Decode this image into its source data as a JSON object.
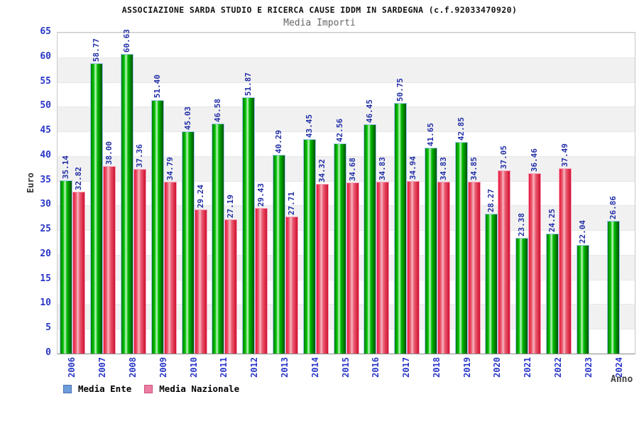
{
  "title": "ASSOCIAZIONE SARDA STUDIO E RICERCA CAUSE IDDM IN SARDEGNA (c.f.92033470920)",
  "subtitle": "Media Importi",
  "chart_data": {
    "type": "bar",
    "title": "ASSOCIAZIONE SARDA STUDIO E RICERCA CAUSE IDDM IN SARDEGNA (c.f.92033470920)",
    "subtitle": "Media Importi",
    "xlabel": "Anno",
    "ylabel": "Euro",
    "ylim": [
      0,
      65
    ],
    "ytick_step": 5,
    "grid": "horizontal-bands",
    "legend_position": "bottom-left",
    "axis_tick_color": "#2936c8",
    "value_label_color": "#222fa8",
    "categories": [
      "2006",
      "2007",
      "2008",
      "2009",
      "2010",
      "2011",
      "2012",
      "2013",
      "2014",
      "2015",
      "2016",
      "2017",
      "2018",
      "2019",
      "2020",
      "2021",
      "2022",
      "2023",
      "2024"
    ],
    "series": [
      {
        "name": "Media Ente",
        "values": [
          35.14,
          58.77,
          60.63,
          51.4,
          45.03,
          46.58,
          51.87,
          40.29,
          43.45,
          42.56,
          46.45,
          50.75,
          41.65,
          42.85,
          28.27,
          23.38,
          24.25,
          22.04,
          26.86
        ],
        "labels": [
          "35.14",
          "58.77",
          "60.63",
          "51.40",
          "45.03",
          "46.58",
          "51.87",
          "40.29",
          "43.45",
          "42.56",
          "46.45",
          "50.75",
          "41.65",
          "42.85",
          "28.27",
          "23.38",
          "24.25",
          "22.04",
          "26.86"
        ],
        "legend_fill": "#6d9dda",
        "legend_border": "#4c6fae",
        "bar_border": "#9cc6f0",
        "gradient": [
          "#0d7c0d",
          "#00c400",
          "#c6f6c6",
          "#00bb00",
          "#035203"
        ]
      },
      {
        "name": "Media Nazionale",
        "values": [
          32.82,
          38.0,
          37.36,
          34.79,
          29.24,
          27.19,
          29.43,
          27.71,
          34.32,
          34.68,
          34.83,
          34.94,
          34.83,
          34.85,
          37.05,
          36.46,
          37.49,
          null,
          null
        ],
        "labels": [
          "32.82",
          "38.00",
          "37.36",
          "34.79",
          "29.24",
          "27.19",
          "29.43",
          "27.71",
          "34.32",
          "34.68",
          "34.83",
          "34.94",
          "34.83",
          "34.85",
          "37.05",
          "36.46",
          "37.49",
          null,
          null
        ],
        "legend_fill": "#ec7da2",
        "legend_border": "#c85580",
        "bar_border": "#f6a2bb",
        "gradient": [
          "#e6173a",
          "#ec5d73",
          "#f6b9c3",
          "#ec5d73",
          "#cf1030"
        ]
      }
    ]
  }
}
